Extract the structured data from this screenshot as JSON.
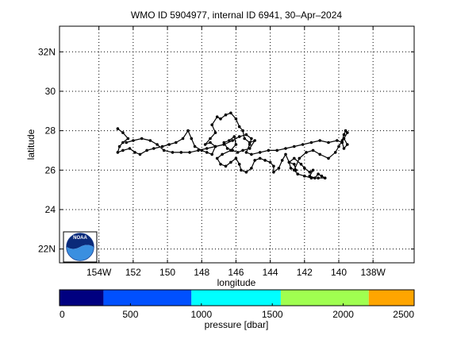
{
  "chart_data": {
    "type": "scatter",
    "title": "WMO ID 5904977, internal ID 6941, 30–Apr–2024",
    "xlabel": "longitude",
    "ylabel": "latitude",
    "xlim": [
      -156.3,
      -135.6
    ],
    "ylim": [
      21.3,
      33.3
    ],
    "x_ticks": [
      {
        "value": -154,
        "label": "154W"
      },
      {
        "value": -152,
        "label": "152"
      },
      {
        "value": -150,
        "label": "150"
      },
      {
        "value": -148,
        "label": "148"
      },
      {
        "value": -146,
        "label": "146"
      },
      {
        "value": -144,
        "label": "144"
      },
      {
        "value": -142,
        "label": "142"
      },
      {
        "value": -140,
        "label": "140"
      },
      {
        "value": -138,
        "label": "138W"
      }
    ],
    "y_ticks": [
      {
        "value": 22,
        "label": "22N"
      },
      {
        "value": 24,
        "label": "24"
      },
      {
        "value": 26,
        "label": "26"
      },
      {
        "value": 28,
        "label": "28"
      },
      {
        "value": 30,
        "label": "30"
      },
      {
        "value": 32,
        "label": "32N"
      }
    ],
    "grid": true,
    "series": [
      {
        "marker": "dot",
        "color": "#000000",
        "points": [
          [
            -152.9,
            28.1
          ],
          [
            -152.6,
            27.9
          ],
          [
            -152.3,
            27.6
          ],
          [
            -152.6,
            27.4
          ],
          [
            -152.8,
            27.2
          ],
          [
            -152.9,
            26.9
          ],
          [
            -152.6,
            27.0
          ],
          [
            -152.2,
            27.1
          ],
          [
            -151.9,
            26.9
          ],
          [
            -151.6,
            26.8
          ],
          [
            -151.2,
            27.0
          ],
          [
            -150.8,
            27.1
          ],
          [
            -150.3,
            27.2
          ],
          [
            -149.9,
            27.3
          ],
          [
            -149.5,
            27.4
          ],
          [
            -149.1,
            27.6
          ],
          [
            -148.8,
            28.0
          ],
          [
            -148.6,
            27.6
          ],
          [
            -148.4,
            27.2
          ],
          [
            -148.0,
            27.0
          ],
          [
            -147.7,
            26.9
          ],
          [
            -147.4,
            26.8
          ],
          [
            -147.2,
            27.2
          ],
          [
            -147.5,
            27.4
          ],
          [
            -147.8,
            27.3
          ],
          [
            -147.5,
            27.6
          ],
          [
            -147.2,
            27.9
          ],
          [
            -147.4,
            28.3
          ],
          [
            -147.1,
            28.7
          ],
          [
            -146.9,
            28.6
          ],
          [
            -146.6,
            28.8
          ],
          [
            -146.3,
            28.9
          ],
          [
            -146.0,
            28.6
          ],
          [
            -145.8,
            28.2
          ],
          [
            -145.6,
            28.0
          ],
          [
            -145.5,
            27.6
          ],
          [
            -145.2,
            27.4
          ],
          [
            -144.9,
            27.5
          ],
          [
            -145.2,
            27.1
          ],
          [
            -145.6,
            27.0
          ],
          [
            -145.9,
            26.9
          ],
          [
            -146.2,
            27.0
          ],
          [
            -146.5,
            27.1
          ],
          [
            -146.7,
            27.4
          ],
          [
            -146.4,
            27.5
          ],
          [
            -146.1,
            27.7
          ],
          [
            -146.0,
            27.3
          ],
          [
            -146.3,
            27.0
          ],
          [
            -146.8,
            26.8
          ],
          [
            -147.1,
            26.6
          ],
          [
            -146.9,
            26.3
          ],
          [
            -146.6,
            26.2
          ],
          [
            -146.3,
            26.4
          ],
          [
            -146.0,
            26.6
          ],
          [
            -145.8,
            26.3
          ],
          [
            -145.7,
            26.0
          ],
          [
            -145.4,
            25.9
          ],
          [
            -145.1,
            26.1
          ],
          [
            -144.9,
            26.5
          ],
          [
            -144.6,
            26.6
          ],
          [
            -144.3,
            26.5
          ],
          [
            -144.0,
            26.4
          ],
          [
            -143.8,
            26.2
          ],
          [
            -143.8,
            25.9
          ],
          [
            -143.5,
            26.1
          ],
          [
            -143.3,
            26.5
          ],
          [
            -143.1,
            26.8
          ],
          [
            -142.9,
            26.4
          ],
          [
            -142.6,
            26.3
          ],
          [
            -142.5,
            26.0
          ],
          [
            -142.8,
            26.1
          ],
          [
            -142.9,
            26.4
          ],
          [
            -142.6,
            26.6
          ],
          [
            -142.2,
            26.3
          ],
          [
            -142.0,
            26.1
          ],
          [
            -141.7,
            25.9
          ],
          [
            -141.5,
            26.0
          ],
          [
            -141.7,
            25.7
          ],
          [
            -141.4,
            25.6
          ],
          [
            -141.2,
            25.8
          ],
          [
            -141.0,
            25.7
          ],
          [
            -140.8,
            25.6
          ],
          [
            -141.2,
            25.6
          ],
          [
            -141.6,
            25.6
          ],
          [
            -142.0,
            25.7
          ],
          [
            -142.4,
            25.8
          ],
          [
            -142.6,
            26.0
          ],
          [
            -142.3,
            26.6
          ],
          [
            -141.9,
            26.9
          ],
          [
            -141.5,
            27.0
          ],
          [
            -141.1,
            26.8
          ],
          [
            -140.6,
            26.6
          ],
          [
            -140.2,
            26.9
          ],
          [
            -140.0,
            27.2
          ],
          [
            -139.8,
            27.5
          ],
          [
            -139.7,
            27.8
          ],
          [
            -139.6,
            28.0
          ],
          [
            -139.5,
            27.9
          ],
          [
            -139.7,
            27.6
          ],
          [
            -139.5,
            27.3
          ],
          [
            -139.7,
            27.1
          ],
          [
            -139.8,
            27.4
          ],
          [
            -140.1,
            27.5
          ],
          [
            -140.6,
            27.4
          ],
          [
            -141.1,
            27.5
          ],
          [
            -141.6,
            27.4
          ],
          [
            -142.1,
            27.3
          ],
          [
            -142.6,
            27.2
          ],
          [
            -143.1,
            27.1
          ],
          [
            -143.6,
            27.0
          ],
          [
            -144.1,
            27.0
          ],
          [
            -144.6,
            26.9
          ],
          [
            -145.1,
            26.8
          ],
          [
            -145.4,
            26.9
          ],
          [
            -145.2,
            27.3
          ],
          [
            -145.1,
            27.6
          ],
          [
            -145.4,
            27.8
          ],
          [
            -145.8,
            27.7
          ],
          [
            -146.2,
            27.5
          ],
          [
            -146.7,
            27.3
          ],
          [
            -147.2,
            27.2
          ],
          [
            -147.7,
            27.1
          ],
          [
            -148.2,
            27.0
          ],
          [
            -148.7,
            26.9
          ],
          [
            -149.2,
            26.9
          ],
          [
            -149.7,
            26.9
          ],
          [
            -150.2,
            27.0
          ],
          [
            -150.6,
            27.3
          ],
          [
            -151.0,
            27.5
          ],
          [
            -151.5,
            27.6
          ],
          [
            -152.0,
            27.5
          ],
          [
            -152.4,
            27.4
          ]
        ]
      }
    ],
    "colorbar": {
      "label": "pressure [dbar]",
      "range": [
        0,
        2500
      ],
      "tick_values": [
        0,
        500,
        1000,
        1500,
        2000,
        2500
      ],
      "segments": [
        {
          "from": 0,
          "to": 310,
          "color": "#000080"
        },
        {
          "from": 310,
          "to": 930,
          "color": "#0050ff"
        },
        {
          "from": 930,
          "to": 1560,
          "color": "#00ffff"
        },
        {
          "from": 1560,
          "to": 2180,
          "color": "#a0ff50"
        },
        {
          "from": 2180,
          "to": 2500,
          "color": "#ffa500"
        }
      ]
    },
    "logo": {
      "text": "NOAA"
    }
  }
}
